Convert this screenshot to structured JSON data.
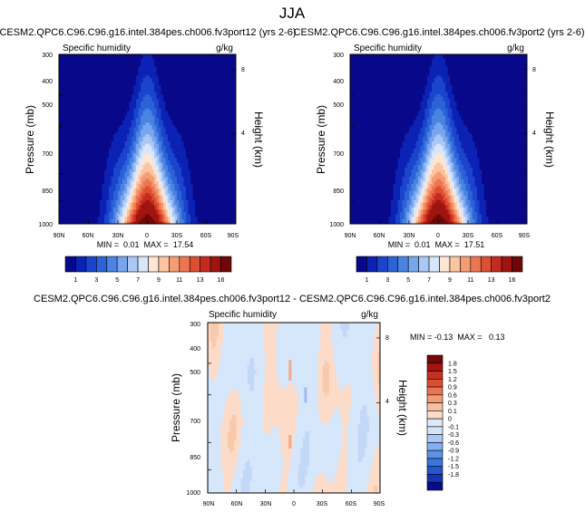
{
  "figure_title": "JJA",
  "colors": {
    "seq_palette": [
      "#08088a",
      "#0b22b4",
      "#1a44cc",
      "#2c62d8",
      "#4a83e2",
      "#78a6ee",
      "#aac8f6",
      "#d8e6fb",
      "#fde6d4",
      "#fbc4a2",
      "#f59c73",
      "#ec7650",
      "#dd4e33",
      "#c52a1e",
      "#a0140f",
      "#6e0808"
    ],
    "diff_palette": [
      "#0a0a8c",
      "#1433b8",
      "#2356d2",
      "#3a75e0",
      "#5a94ea",
      "#82b0f2",
      "#aac8f6",
      "#d2e3fa",
      "#dce9fa",
      "#fbdcc6",
      "#f9c0a0",
      "#f39c76",
      "#ea7552",
      "#dc4e34",
      "#c6301f",
      "#a5140e",
      "#760707"
    ]
  },
  "panels": [
    {
      "id": "panel-left",
      "title": "CESM2.QPC6.C96.C96.g16.intel.384pes.ch006.fv3port12 (yrs 2-6)",
      "left_label": "Specific humidity",
      "right_label": "g/kg",
      "stats": "MIN =  0.01  MAX =  17.54",
      "colorbar_labels": [
        "1",
        "3",
        "5",
        "7",
        "9",
        "11",
        "13",
        "16"
      ]
    },
    {
      "id": "panel-right",
      "title": "CESM2.QPC6.C96.C96.g16.intel.384pes.ch006.fv3port2 (yrs 2-6)",
      "left_label": "Specific humidity",
      "right_label": "g/kg",
      "stats": "MIN =  0.01  MAX =  17.51",
      "colorbar_labels": [
        "1",
        "3",
        "5",
        "7",
        "9",
        "11",
        "13",
        "16"
      ]
    },
    {
      "id": "panel-diff",
      "title": "CESM2.QPC6.C96.C96.g16.intel.384pes.ch006.fv3port12 - CESM2.QPC6.C96.C96.g16.intel.384pes.ch006.fv3port2",
      "left_label": "Specific humidity",
      "right_label": "g/kg",
      "stats": "MIN = -0.13  MAX =   0.13",
      "colorbar_labels": [
        "1.8",
        "1.5",
        "1.2",
        "0.9",
        "0.6",
        "0.3",
        "0.1",
        "0",
        "-0.1",
        "-0.3",
        "-0.6",
        "-0.9",
        "-1.2",
        "-1.5",
        "-1.8"
      ]
    }
  ],
  "chart_data": [
    {
      "type": "heatmap",
      "title": "CESM2.QPC6.C96.C96.g16.intel.384pes.ch006.fv3port12 (yrs 2-6)",
      "variable": "Specific humidity",
      "units": "g/kg",
      "xlabel": "",
      "ylabel": "Pressure (mb)",
      "y2label": "Height (km)",
      "x_ticks": [
        "90N",
        "60N",
        "30N",
        "0",
        "30S",
        "60S",
        "90S"
      ],
      "y_ticks": [
        "300",
        "400",
        "500",
        "700",
        "850",
        "1000"
      ],
      "y2_ticks": [
        "8",
        "4"
      ],
      "contour_levels": [
        1,
        2,
        3,
        4,
        5,
        6,
        7,
        8,
        9,
        10,
        11,
        12,
        13,
        14,
        16
      ],
      "min": 0.01,
      "max": 17.54
    },
    {
      "type": "heatmap",
      "title": "CESM2.QPC6.C96.C96.g16.intel.384pes.ch006.fv3port2 (yrs 2-6)",
      "variable": "Specific humidity",
      "units": "g/kg",
      "xlabel": "",
      "ylabel": "Pressure (mb)",
      "y2label": "Height (km)",
      "x_ticks": [
        "90N",
        "60N",
        "30N",
        "0",
        "30S",
        "60S",
        "90S"
      ],
      "y_ticks": [
        "300",
        "400",
        "500",
        "700",
        "850",
        "1000"
      ],
      "y2_ticks": [
        "8",
        "4"
      ],
      "contour_levels": [
        1,
        2,
        3,
        4,
        5,
        6,
        7,
        8,
        9,
        10,
        11,
        12,
        13,
        14,
        16
      ],
      "min": 0.01,
      "max": 17.51
    },
    {
      "type": "heatmap",
      "title": "CESM2.QPC6.C96.C96.g16.intel.384pes.ch006.fv3port12 - CESM2.QPC6.C96.C96.g16.intel.384pes.ch006.fv3port2",
      "variable": "Specific humidity",
      "units": "g/kg",
      "xlabel": "",
      "ylabel": "Pressure (mb)",
      "y2label": "Height (km)",
      "x_ticks": [
        "90N",
        "60N",
        "30N",
        "0",
        "30S",
        "60S",
        "90S"
      ],
      "y_ticks": [
        "300",
        "400",
        "500",
        "700",
        "850",
        "1000"
      ],
      "y2_ticks": [
        "8",
        "4"
      ],
      "contour_levels": [
        -1.8,
        -1.5,
        -1.2,
        -0.9,
        -0.6,
        -0.3,
        -0.1,
        0,
        0.1,
        0.3,
        0.6,
        0.9,
        1.2,
        1.5,
        1.8
      ],
      "min": -0.13,
      "max": 0.13
    }
  ]
}
